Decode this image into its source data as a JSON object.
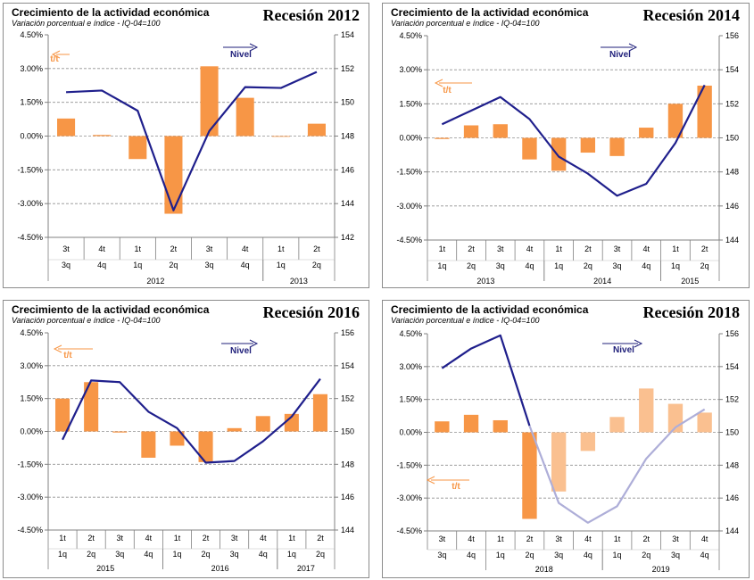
{
  "colors": {
    "bar": "#f79646",
    "bar_light": "#fac090",
    "line": "#1f1f8c",
    "line_light": "#aeaed8",
    "grid": "#909090",
    "axis": "#808080",
    "tt_label": "#f79646",
    "nivel_label": "#1f1f7a"
  },
  "chart_data": [
    {
      "type": "bar+line",
      "title": "Crecimiento de la actividad económica",
      "subtitle": "Variación porcentual e índice - IQ-04=100",
      "badge": "Recesión 2012",
      "legend": {
        "bars": "t/t",
        "line": "Nivel",
        "bars_arrow": "left",
        "line_arrow": "right"
      },
      "left_axis": {
        "ticks": [
          "4.50%",
          "3.00%",
          "1.50%",
          "0.00%",
          "-1.50%",
          "-3.00%",
          "-4.50%"
        ],
        "ylim": [
          -4.5,
          4.5
        ]
      },
      "right_axis": {
        "ticks": [
          "154",
          "152",
          "150",
          "148",
          "146",
          "144",
          "142"
        ],
        "ylim": [
          142,
          154
        ]
      },
      "quarters_es": [
        "3t",
        "4t",
        "1t",
        "2t",
        "3t",
        "4t",
        "1t",
        "2t"
      ],
      "quarters_en": [
        "3q",
        "4q",
        "1q",
        "2q",
        "3q",
        "4q",
        "1q",
        "2q"
      ],
      "years": [
        {
          "label": "2012",
          "from": 0,
          "to": 5
        },
        {
          "label": "2013",
          "from": 6,
          "to": 7
        }
      ],
      "bar_values": [
        0.78,
        0.05,
        -1.02,
        -3.45,
        3.1,
        1.7,
        -0.03,
        0.55
      ],
      "line_values": [
        150.6,
        150.7,
        149.5,
        143.6,
        148.3,
        150.9,
        150.85,
        151.8
      ],
      "light_from": null
    },
    {
      "type": "bar+line",
      "title": "Crecimiento de la actividad económica",
      "subtitle": "Variación porcentual e índice - IQ-04=100",
      "badge": "Recesión 2014",
      "legend": {
        "bars": "t/t",
        "line": "Nivel",
        "bars_arrow": "left",
        "line_arrow": "right"
      },
      "left_axis": {
        "ticks": [
          "4.50%",
          "3.00%",
          "1.50%",
          "0.00%",
          "-1.50%",
          "-3.00%",
          "-4.50%"
        ],
        "ylim": [
          -4.5,
          4.5
        ]
      },
      "right_axis": {
        "ticks": [
          "156",
          "154",
          "152",
          "150",
          "148",
          "146",
          "144"
        ],
        "ylim": [
          144,
          156
        ]
      },
      "quarters_es": [
        "1t",
        "2t",
        "3t",
        "4t",
        "1t",
        "2t",
        "3t",
        "4t",
        "1t",
        "2t"
      ],
      "quarters_en": [
        "1q",
        "2q",
        "3q",
        "4q",
        "1q",
        "2q",
        "3q",
        "4q",
        "1q",
        "2q"
      ],
      "years": [
        {
          "label": "2013",
          "from": 0,
          "to": 3
        },
        {
          "label": "2014",
          "from": 4,
          "to": 7
        },
        {
          "label": "2015",
          "from": 8,
          "to": 9
        }
      ],
      "bar_values": [
        -0.05,
        0.55,
        0.6,
        -0.95,
        -1.45,
        -0.65,
        -0.8,
        0.45,
        1.5,
        2.3
      ],
      "line_values": [
        150.8,
        151.6,
        152.4,
        151.1,
        148.9,
        147.9,
        146.6,
        147.3,
        149.7,
        153.1
      ],
      "light_from": null
    },
    {
      "type": "bar+line",
      "title": "Crecimiento de la actividad económica",
      "subtitle": "Variación porcentual e índice - IQ-04=100",
      "badge": "Recesión 2016",
      "legend": {
        "bars": "t/t",
        "line": "Nivel",
        "bars_arrow": "left",
        "line_arrow": "right"
      },
      "left_axis": {
        "ticks": [
          "4.50%",
          "3.00%",
          "1.50%",
          "0.00%",
          "-1.50%",
          "-3.00%",
          "-4.50%"
        ],
        "ylim": [
          -4.5,
          4.5
        ]
      },
      "right_axis": {
        "ticks": [
          "156",
          "154",
          "152",
          "150",
          "148",
          "146",
          "144"
        ],
        "ylim": [
          144,
          156
        ]
      },
      "quarters_es": [
        "1t",
        "2t",
        "3t",
        "4t",
        "1t",
        "2t",
        "3t",
        "4t",
        "1t",
        "2t"
      ],
      "quarters_en": [
        "1q",
        "2q",
        "3q",
        "4q",
        "1q",
        "2q",
        "3q",
        "4q",
        "1q",
        "2q"
      ],
      "years": [
        {
          "label": "2015",
          "from": 0,
          "to": 3
        },
        {
          "label": "2016",
          "from": 4,
          "to": 7
        },
        {
          "label": "2017",
          "from": 8,
          "to": 9
        }
      ],
      "bar_values": [
        1.5,
        2.25,
        -0.05,
        -1.2,
        -0.65,
        -1.4,
        0.15,
        0.7,
        0.8,
        1.7
      ],
      "line_values": [
        149.5,
        153.1,
        153.0,
        151.2,
        150.2,
        148.1,
        148.2,
        149.4,
        150.9,
        153.2
      ],
      "light_from": null
    },
    {
      "type": "bar+line",
      "title": "Crecimiento de la actividad económica",
      "subtitle": "Variación porcentual e índice - IQ-04=100",
      "badge": "Recesión 2018",
      "legend": {
        "bars": "t/t",
        "line": "Nivel",
        "bars_arrow": "left",
        "line_arrow": "right"
      },
      "left_axis": {
        "ticks": [
          "4.50%",
          "3.00%",
          "1.50%",
          "0.00%",
          "-1.50%",
          "-3.00%",
          "-4.50%"
        ],
        "ylim": [
          -4.5,
          4.5
        ]
      },
      "right_axis": {
        "ticks": [
          "156",
          "154",
          "152",
          "150",
          "148",
          "146",
          "144"
        ],
        "ylim": [
          144,
          156
        ]
      },
      "quarters_es": [
        "3t",
        "4t",
        "1t",
        "2t",
        "3t",
        "4t",
        "1t",
        "2t",
        "3t",
        "4t"
      ],
      "quarters_en": [
        "3q",
        "4q",
        "1q",
        "2q",
        "3q",
        "4q",
        "1q",
        "2q",
        "3q",
        "4q"
      ],
      "years": [
        {
          "label": "2018",
          "from": 2,
          "to": 5
        },
        {
          "label": "2019",
          "from": 6,
          "to": 9
        }
      ],
      "bar_values": [
        0.5,
        0.8,
        0.55,
        -3.95,
        -2.7,
        -0.85,
        0.7,
        2.0,
        1.3,
        0.9
      ],
      "line_values": [
        153.9,
        155.1,
        155.9,
        150.4,
        145.7,
        144.5,
        145.5,
        148.4,
        150.3,
        151.4
      ],
      "light_from": 4
    }
  ]
}
